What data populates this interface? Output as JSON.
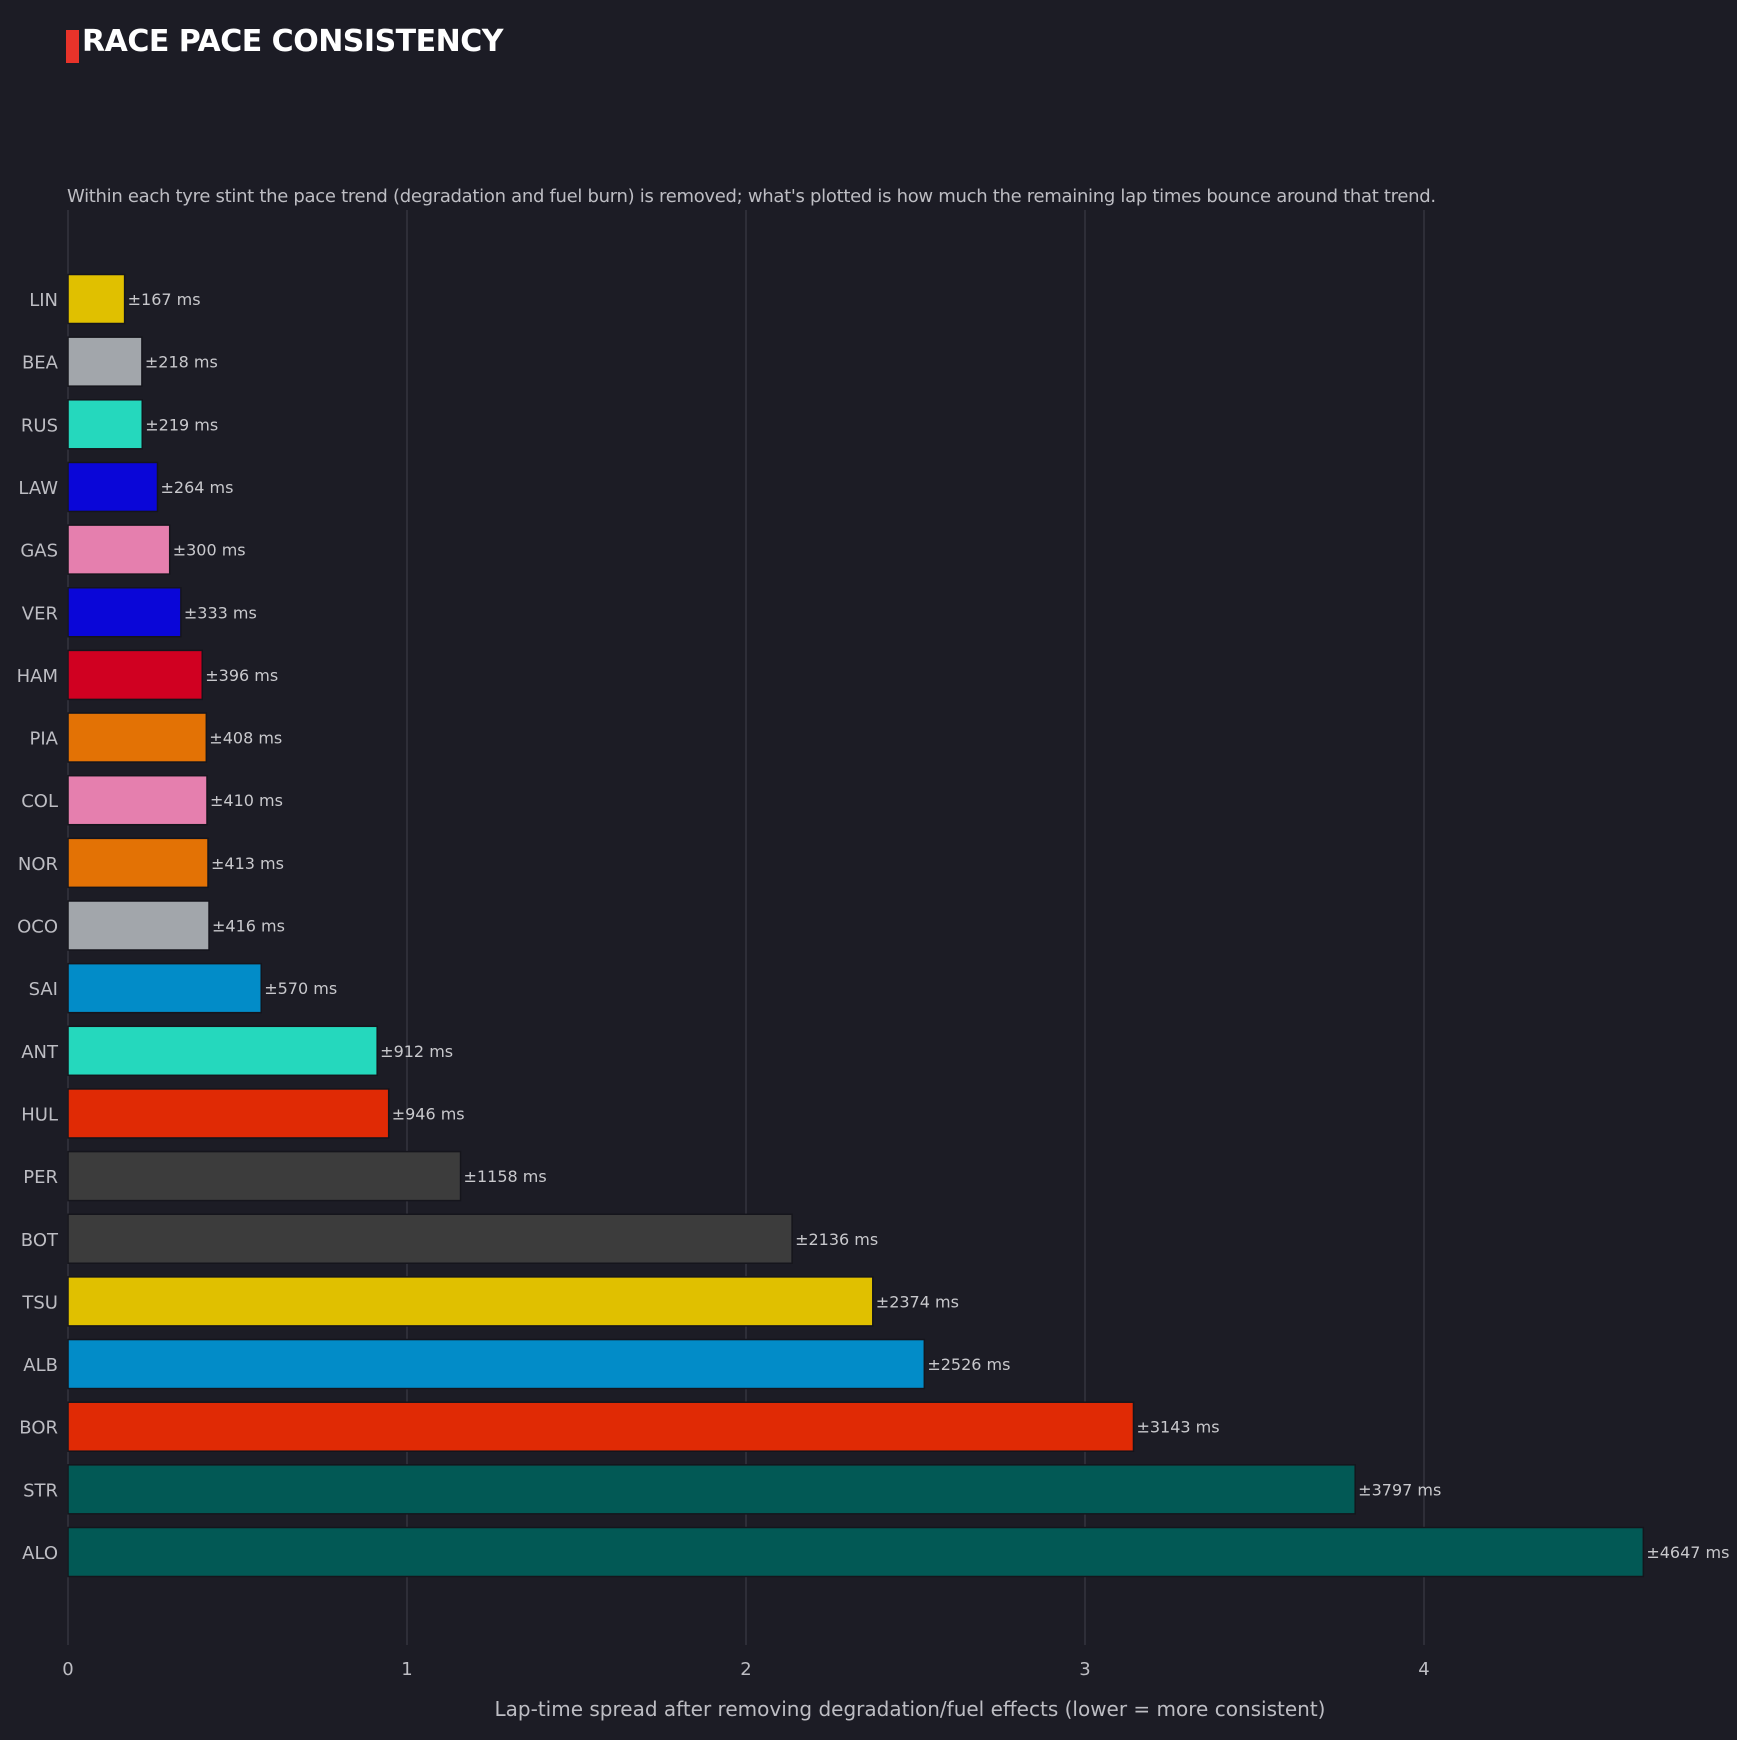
{
  "title": "RACE PACE CONSISTENCY",
  "subtitle": "Within each tyre stint the pace trend (degradation and fuel burn) is removed; what's plotted is how much the remaining lap times bounce around that trend.",
  "colors": {
    "background": "#1c1c25",
    "grid": "#34343f",
    "accent": "#e8332a",
    "text": "#c8c8cc"
  },
  "chart_data": {
    "type": "bar",
    "orientation": "horizontal",
    "xlabel": "Lap-time spread after removing degradation/fuel effects  (lower = more consistent)",
    "ylabel": "",
    "xlim": [
      0,
      4.9
    ],
    "xticks": [
      0,
      1,
      2,
      3,
      4
    ],
    "grid": "vertical",
    "value_label_suffix": " ms",
    "value_label_prefix": "±",
    "categories": [
      "LIN",
      "BEA",
      "RUS",
      "LAW",
      "GAS",
      "VER",
      "HAM",
      "PIA",
      "COL",
      "NOR",
      "OCO",
      "SAI",
      "ANT",
      "HUL",
      "PER",
      "BOT",
      "TSU",
      "ALB",
      "BOR",
      "STR",
      "ALO"
    ],
    "values": [
      0.167,
      0.218,
      0.219,
      0.264,
      0.3,
      0.333,
      0.396,
      0.408,
      0.41,
      0.413,
      0.416,
      0.57,
      0.912,
      0.946,
      1.158,
      2.136,
      2.374,
      2.526,
      3.143,
      3.797,
      4.647
    ],
    "labels": [
      "±167 ms",
      "±218 ms",
      "±219 ms",
      "±264 ms",
      "±300 ms",
      "±333 ms",
      "±396 ms",
      "±408 ms",
      "±410 ms",
      "±413 ms",
      "±416 ms",
      "±570 ms",
      "±912 ms",
      "±946 ms",
      "±1158 ms",
      "±2136 ms",
      "±2374 ms",
      "±2526 ms",
      "±3143 ms",
      "±3797 ms",
      "±4647 ms"
    ],
    "bar_colors": [
      "#e0c000",
      "#a2a6ab",
      "#25d8bd",
      "#0a06d8",
      "#e57fae",
      "#0a06d8",
      "#d00021",
      "#e37205",
      "#e57fae",
      "#e37205",
      "#a2a6ab",
      "#028cc8",
      "#25d8bd",
      "#e02a05",
      "#3c3c3c",
      "#3c3c3c",
      "#e0c000",
      "#028cc8",
      "#e02a05",
      "#025955",
      "#025955"
    ]
  }
}
